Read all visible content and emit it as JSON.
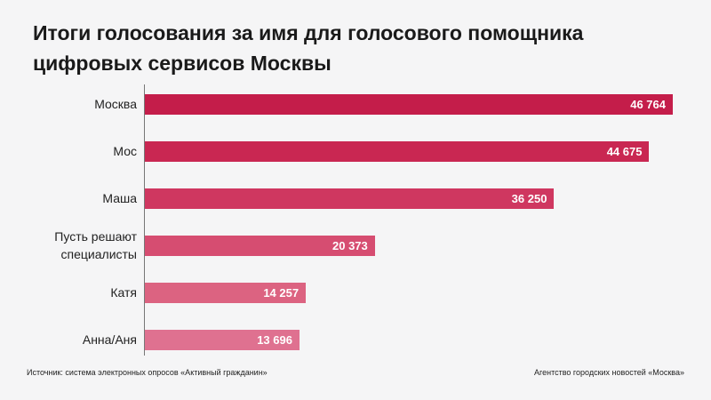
{
  "chart_data": {
    "type": "bar",
    "orientation": "horizontal",
    "title": "Итоги голосования за имя для голосового помощника цифровых сервисов Москвы",
    "categories": [
      "Москва",
      "Мос",
      "Маша",
      "Пусть решают специалисты",
      "Катя",
      "Анна/Аня"
    ],
    "values": [
      46764,
      44675,
      36250,
      20373,
      14257,
      13696
    ],
    "value_labels": [
      "46 764",
      "44 675",
      "36 250",
      "20 373",
      "14 257",
      "13 696"
    ],
    "colors": [
      "#c41d4a",
      "#c92752",
      "#cf3760",
      "#d64d71",
      "#dc6381",
      "#df7190"
    ],
    "source": "Источник: система электронных опросов «Активный гражданин»",
    "credit": "Агентство городских новостей «Москва»"
  }
}
